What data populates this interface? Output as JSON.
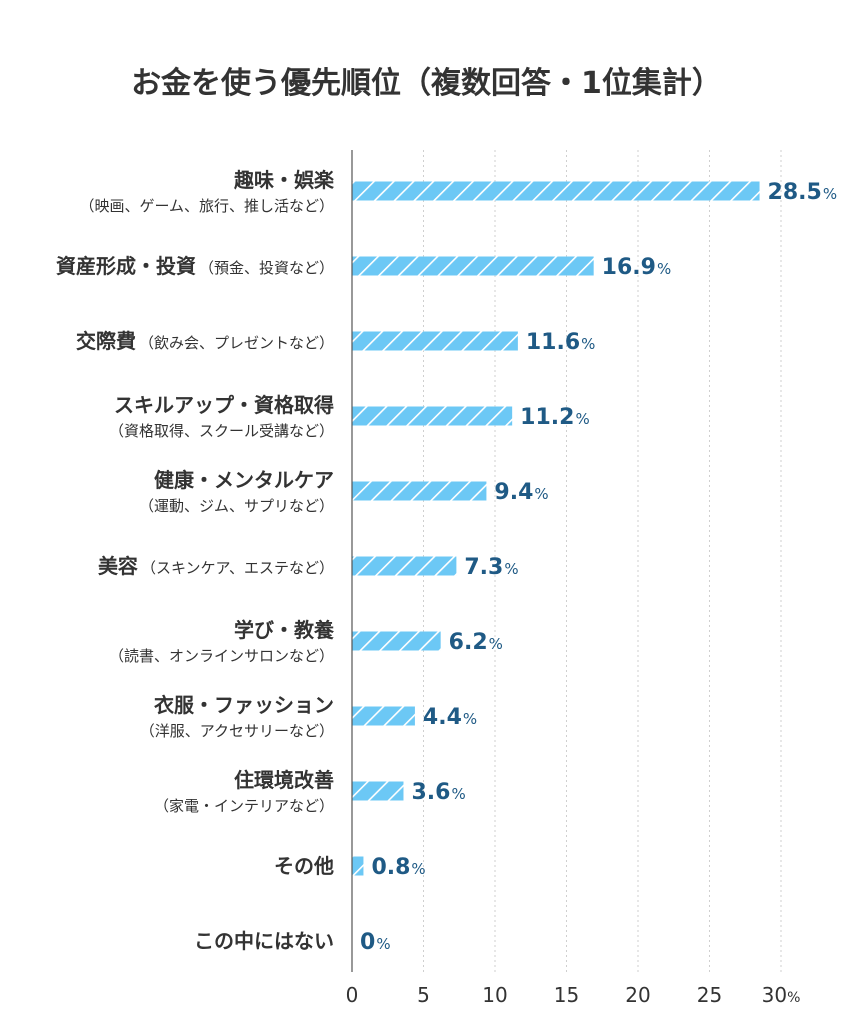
{
  "chart_data": {
    "type": "bar",
    "orientation": "horizontal",
    "title": "お金を使う優先順位（複数回答・1位集計）",
    "categories": [
      {
        "label": "趣味・娯楽",
        "sub": "（映画、ゲーム、旅行、推し活など）"
      },
      {
        "label": "資産形成・投資",
        "inline_sub": "（預金、投資など）"
      },
      {
        "label": "交際費",
        "inline_sub": "（飲み会、プレゼントなど）"
      },
      {
        "label": "スキルアップ・資格取得",
        "sub": "（資格取得、スクール受講など）"
      },
      {
        "label": "健康・メンタルケア",
        "sub": "（運動、ジム、サプリなど）"
      },
      {
        "label": "美容",
        "inline_sub": "（スキンケア、エステなど）"
      },
      {
        "label": "学び・教養",
        "sub": "（読書、オンラインサロンなど）"
      },
      {
        "label": "衣服・ファッション",
        "sub": "（洋服、アクセサリーなど）"
      },
      {
        "label": "住環境改善",
        "sub": "（家電・インテリアなど）"
      },
      {
        "label": "その他"
      },
      {
        "label": "この中にはない"
      }
    ],
    "values": [
      28.5,
      16.9,
      11.6,
      11.2,
      9.4,
      7.3,
      6.2,
      4.4,
      3.6,
      0.8,
      0
    ],
    "value_labels": [
      "28.5",
      "16.9",
      "11.6",
      "11.2",
      "9.4",
      "7.3",
      "6.2",
      "4.4",
      "3.6",
      "0.8",
      "0"
    ],
    "unit": "%",
    "x_ticks": [
      0,
      5,
      10,
      15,
      20,
      25,
      30
    ],
    "x_tick_labels": [
      "0",
      "5",
      "10",
      "15",
      "20",
      "25",
      "30"
    ],
    "x_tick_unit": "%",
    "xlim": [
      0,
      30
    ],
    "grid": "vertical dotted",
    "colors": {
      "bar": "#6cc8f5",
      "bar_stripe": "#ffffff",
      "value_label": "#1f5a85",
      "label": "#333333",
      "grid": "#cfcfcf",
      "axis": "#555555"
    }
  }
}
